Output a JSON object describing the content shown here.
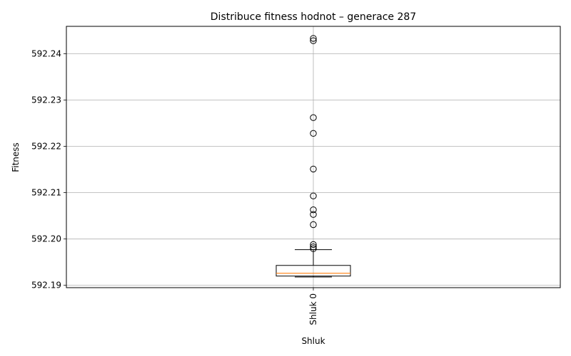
{
  "chart_data": {
    "type": "box",
    "title": "Distribuce fitness hodnot – generace 287",
    "xlabel": "Shluk",
    "ylabel": "Fitness",
    "ylim": [
      592.1895,
      592.2459
    ],
    "yticks": [
      592.19,
      592.2,
      592.21,
      592.22,
      592.23,
      592.24
    ],
    "ytick_labels": [
      "592.19",
      "592.20",
      "592.21",
      "592.22",
      "592.23",
      "592.24"
    ],
    "grid": true,
    "categories": [
      "Shluk 0"
    ],
    "boxes": [
      {
        "name": "Shluk 0",
        "whisker_low": 592.1918,
        "q1": 592.192,
        "median": 592.1926,
        "q3": 592.1943,
        "whisker_high": 592.1977,
        "outliers": [
          592.1979,
          592.1983,
          592.1988,
          592.2031,
          592.2053,
          592.2063,
          592.2093,
          592.2151,
          592.2228,
          592.2262,
          592.2428,
          592.2433
        ]
      }
    ],
    "colors": {
      "box": "#000000",
      "median": "#ff7f0e",
      "grid": "#b0b0b0"
    }
  }
}
